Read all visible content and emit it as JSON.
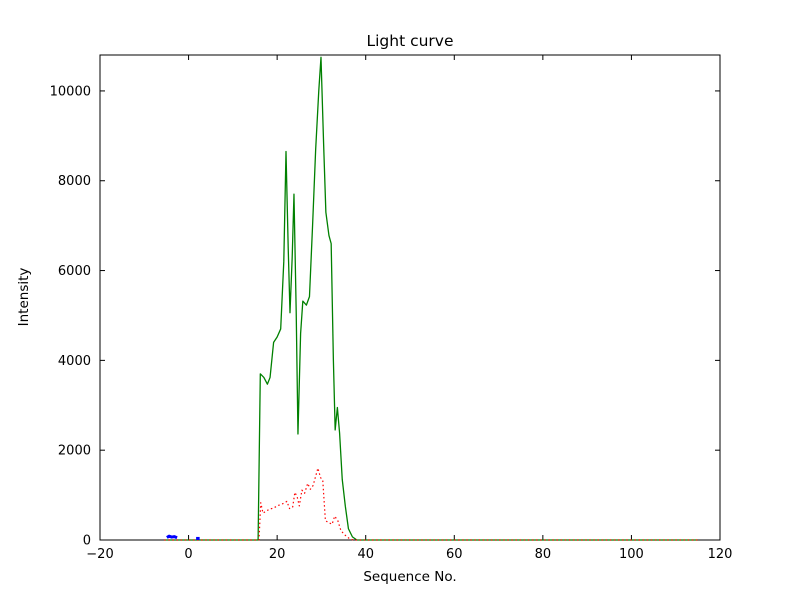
{
  "figure": {
    "background": "#ffffff",
    "frame_color": "#000000"
  },
  "chart_data": {
    "type": "line",
    "title": "Light curve",
    "xlabel": "Sequence No.",
    "ylabel": "Intensity",
    "xlim": [
      -20,
      120
    ],
    "ylim": [
      0,
      10800
    ],
    "grid": false,
    "legend": null,
    "xticks": [
      -20,
      0,
      20,
      40,
      60,
      80,
      100,
      120
    ],
    "xtick_labels": [
      "−20",
      "0",
      "20",
      "40",
      "60",
      "80",
      "100",
      "120"
    ],
    "yticks": [
      0,
      2000,
      4000,
      6000,
      8000,
      10000
    ],
    "ytick_labels": [
      "0",
      "2000",
      "4000",
      "6000",
      "8000",
      "10000"
    ],
    "series": [
      {
        "name": "green-signal",
        "color": "#008000",
        "style": "solid",
        "width": 1.3,
        "segments": [
          [
            [
              -5.5,
              0
            ],
            [
              15.7,
              0
            ],
            [
              16.2,
              3700
            ],
            [
              17,
              3620
            ],
            [
              17.8,
              3470
            ],
            [
              18.4,
              3620
            ],
            [
              19.2,
              4400
            ],
            [
              20,
              4520
            ],
            [
              20.8,
              4700
            ],
            [
              21.5,
              6200
            ],
            [
              22,
              8650
            ],
            [
              22.5,
              6500
            ],
            [
              22.9,
              5060
            ],
            [
              23.4,
              6300
            ],
            [
              23.8,
              7700
            ],
            [
              24.3,
              5100
            ],
            [
              24.7,
              2360
            ],
            [
              25.3,
              4600
            ],
            [
              25.8,
              5320
            ],
            [
              26.6,
              5230
            ],
            [
              27.3,
              5420
            ],
            [
              28,
              7000
            ],
            [
              28.7,
              8700
            ],
            [
              29.4,
              10000
            ],
            [
              29.9,
              10750
            ],
            [
              30.5,
              8800
            ],
            [
              31,
              7300
            ],
            [
              31.7,
              6780
            ],
            [
              32.2,
              6600
            ],
            [
              32.7,
              4000
            ],
            [
              33.1,
              2450
            ],
            [
              33.6,
              2950
            ],
            [
              34.1,
              2380
            ],
            [
              34.7,
              1350
            ],
            [
              35.4,
              750
            ],
            [
              36.1,
              250
            ],
            [
              37,
              70
            ],
            [
              38,
              0
            ],
            [
              115,
              0
            ]
          ]
        ]
      },
      {
        "name": "red-dotted-background",
        "color": "#ff0000",
        "style": "dotted",
        "width": 1.2,
        "segments": [
          [
            [
              -5.5,
              0
            ],
            [
              15.9,
              0
            ],
            [
              16.3,
              830
            ],
            [
              16.8,
              600
            ],
            [
              17.5,
              640
            ],
            [
              18.3,
              690
            ],
            [
              19.2,
              710
            ],
            [
              20,
              760
            ],
            [
              20.8,
              790
            ],
            [
              21.6,
              820
            ],
            [
              22.2,
              860
            ],
            [
              22.8,
              700
            ],
            [
              23.5,
              730
            ],
            [
              24,
              1060
            ],
            [
              24.5,
              970
            ],
            [
              25,
              760
            ],
            [
              25.6,
              1110
            ],
            [
              26.2,
              1040
            ],
            [
              26.9,
              1260
            ],
            [
              27.5,
              1130
            ],
            [
              28.1,
              1210
            ],
            [
              28.7,
              1420
            ],
            [
              29.2,
              1600
            ],
            [
              29.8,
              1390
            ],
            [
              30.3,
              1330
            ],
            [
              30.9,
              430
            ],
            [
              31.6,
              390
            ],
            [
              32.4,
              350
            ],
            [
              33,
              530
            ],
            [
              33.7,
              430
            ],
            [
              34.4,
              210
            ],
            [
              35.2,
              120
            ],
            [
              36.2,
              40
            ],
            [
              37.2,
              0
            ],
            [
              115,
              0
            ]
          ]
        ]
      },
      {
        "name": "blue-marker",
        "color": "#0000ff",
        "style": "solid",
        "width": 3,
        "segments": [
          [
            [
              -4.9,
              55
            ],
            [
              -4.4,
              85
            ],
            [
              -3.8,
              65
            ],
            [
              -3.2,
              75
            ],
            [
              -2.6,
              50
            ]
          ],
          [
            [
              1.7,
              35
            ],
            [
              2.5,
              35
            ]
          ]
        ]
      }
    ]
  }
}
